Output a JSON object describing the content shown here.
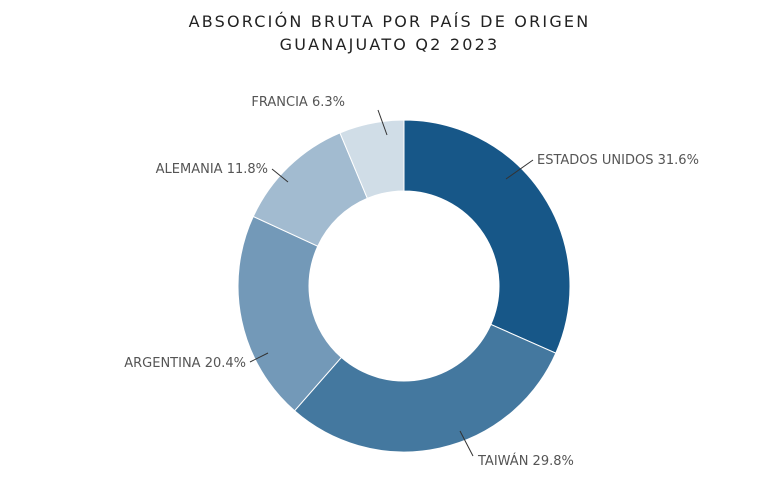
{
  "chart_data": {
    "type": "pie",
    "variant": "donut",
    "title_lines": [
      "ABSORCIÓN BRUTA POR PAÍS DE ORIGEN",
      "GUANAJUATO Q2 2023"
    ],
    "unit": "%",
    "slices": [
      {
        "label": "ESTADOS UNIDOS",
        "value": 31.6,
        "color": "#175788"
      },
      {
        "label": "TAIWÁN",
        "value": 29.8,
        "color": "#44789f"
      },
      {
        "label": "ARGENTINA",
        "value": 20.4,
        "color": "#7399b8"
      },
      {
        "label": "ALEMANIA",
        "value": 11.8,
        "color": "#a2bbd0"
      },
      {
        "label": "FRANCIA",
        "value": 6.3,
        "color": "#d0dde7"
      }
    ],
    "legend": "none",
    "labels": "outside with leader lines"
  }
}
